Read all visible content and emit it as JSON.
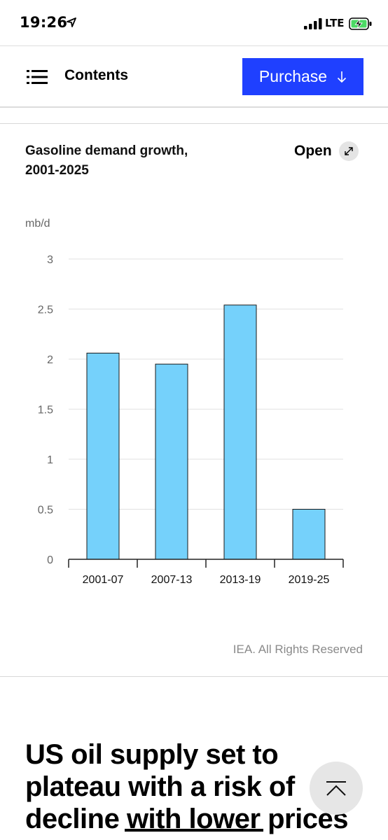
{
  "status_bar": {
    "time": "19:26",
    "network": "LTE"
  },
  "nav": {
    "title": "Contents",
    "purchase_label": "Purchase",
    "accent_color": "#1f40ff"
  },
  "card": {
    "title_line1": "Gasoline demand growth,",
    "title_line2": "2001-2025",
    "open_label": "Open",
    "credit": "IEA. All Rights Reserved"
  },
  "chart_data": {
    "type": "bar",
    "title": "Gasoline demand growth, 2001-2025",
    "ylabel": "mb/d",
    "categories": [
      "2001-07",
      "2007-13",
      "2013-19",
      "2019-25"
    ],
    "values": [
      2.06,
      1.95,
      2.54,
      0.5
    ],
    "ylim": [
      0,
      3
    ],
    "yticks": [
      "0",
      "0.5",
      "1",
      "1.5",
      "2",
      "2.5",
      "3"
    ],
    "bar_color": "#75d1fb",
    "grid": true
  },
  "article": {
    "headline_line1": "US oil supply set to",
    "headline_line2": "plateau with a risk of",
    "headline_line3": "decline with lower prices"
  }
}
